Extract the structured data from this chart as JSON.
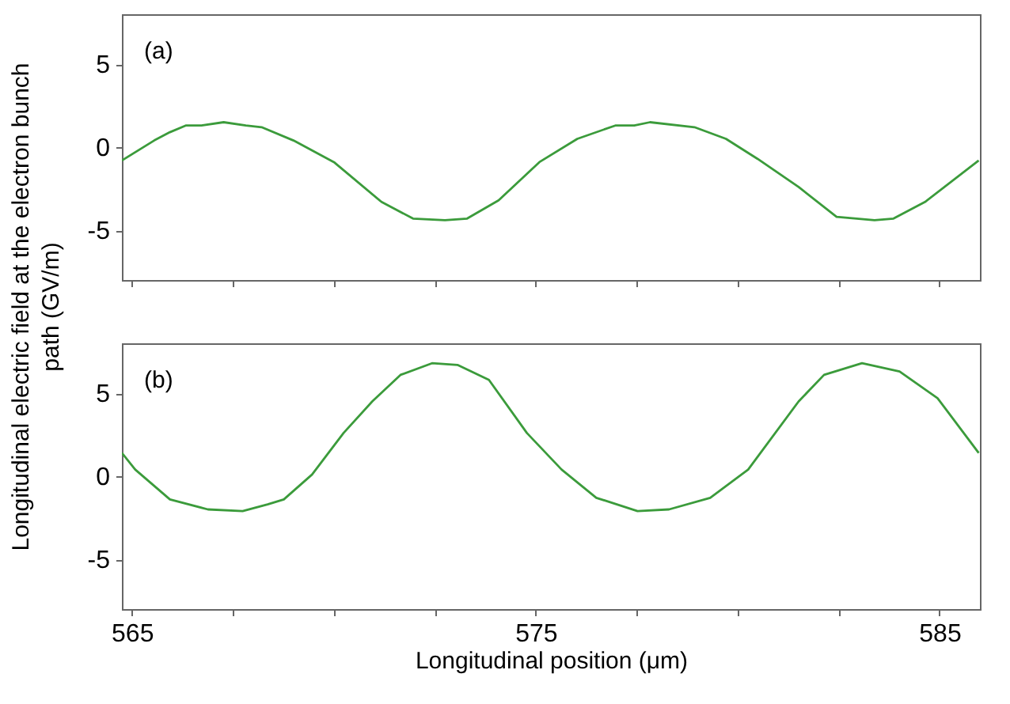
{
  "chart_data": [
    {
      "type": "line",
      "annotations": [
        "(a)"
      ],
      "tick_labels": "y",
      "xlim": [
        564.75,
        586
      ],
      "ylim": [
        -8,
        8
      ],
      "xticks": [
        {
          "value": 565,
          "label": null
        },
        {
          "value": 567.5,
          "label": null
        },
        {
          "value": 570,
          "label": null
        },
        {
          "value": 572.5,
          "label": null
        },
        {
          "value": 575,
          "label": null
        },
        {
          "value": 577.5,
          "label": null
        },
        {
          "value": 580,
          "label": null
        },
        {
          "value": 582.5,
          "label": null
        },
        {
          "value": 585,
          "label": null
        }
      ],
      "yticks": [
        -5,
        0,
        5
      ],
      "x": [
        564.75,
        565.55,
        565.94,
        566.33,
        566.72,
        567.27,
        567.82,
        568.21,
        569.0,
        570.0,
        571.18,
        571.96,
        572.75,
        573.3,
        574.08,
        575.09,
        576.03,
        576.97,
        577.44,
        577.83,
        578.93,
        579.71,
        580.49,
        581.51,
        582.45,
        583.39,
        583.86,
        584.64,
        585.97
      ],
      "series": [
        {
          "color": "#3b9b3b",
          "values": [
            -0.8,
            0.4,
            0.9,
            1.3,
            1.3,
            1.5,
            1.3,
            1.2,
            0.4,
            -0.9,
            -3.3,
            -4.3,
            -4.4,
            -4.3,
            -3.2,
            -0.9,
            0.5,
            1.3,
            1.3,
            1.5,
            1.2,
            0.5,
            -0.7,
            -2.4,
            -4.2,
            -4.4,
            -4.3,
            -3.3,
            -0.8
          ]
        }
      ]
    },
    {
      "type": "line",
      "annotations": [
        "(b)"
      ],
      "xlabel": "Longitudinal position (μm)",
      "ylabel": "Longitudinal electric field at the electron bunch path  (GV/m)",
      "xlim": [
        564.75,
        586
      ],
      "ylim": [
        -8,
        8
      ],
      "xticks": [
        565,
        {
          "value": 567.5,
          "label": null
        },
        {
          "value": 570,
          "label": null
        },
        {
          "value": 572.5,
          "label": null
        },
        575,
        {
          "value": 577.5,
          "label": null
        },
        {
          "value": 580,
          "label": null
        },
        {
          "value": 582.5,
          "label": null
        },
        585
      ],
      "yticks": [
        -5,
        0,
        5
      ],
      "x": [
        564.75,
        565.08,
        565.94,
        566.88,
        567.74,
        568.36,
        568.76,
        569.46,
        570.24,
        570.95,
        571.65,
        572.43,
        573.06,
        573.84,
        574.78,
        575.64,
        576.5,
        577.52,
        578.3,
        579.32,
        580.26,
        581.51,
        582.14,
        583.08,
        584.01,
        584.95,
        585.97
      ],
      "series": [
        {
          "color": "#3b9b3b",
          "values": [
            1.4,
            0.4,
            -1.4,
            -2.0,
            -2.1,
            -1.7,
            -1.4,
            0.1,
            2.6,
            4.5,
            6.1,
            6.8,
            6.7,
            5.8,
            2.6,
            0.4,
            -1.3,
            -2.1,
            -2.0,
            -1.3,
            0.4,
            4.5,
            6.1,
            6.8,
            6.3,
            4.7,
            1.4
          ]
        }
      ]
    }
  ]
}
